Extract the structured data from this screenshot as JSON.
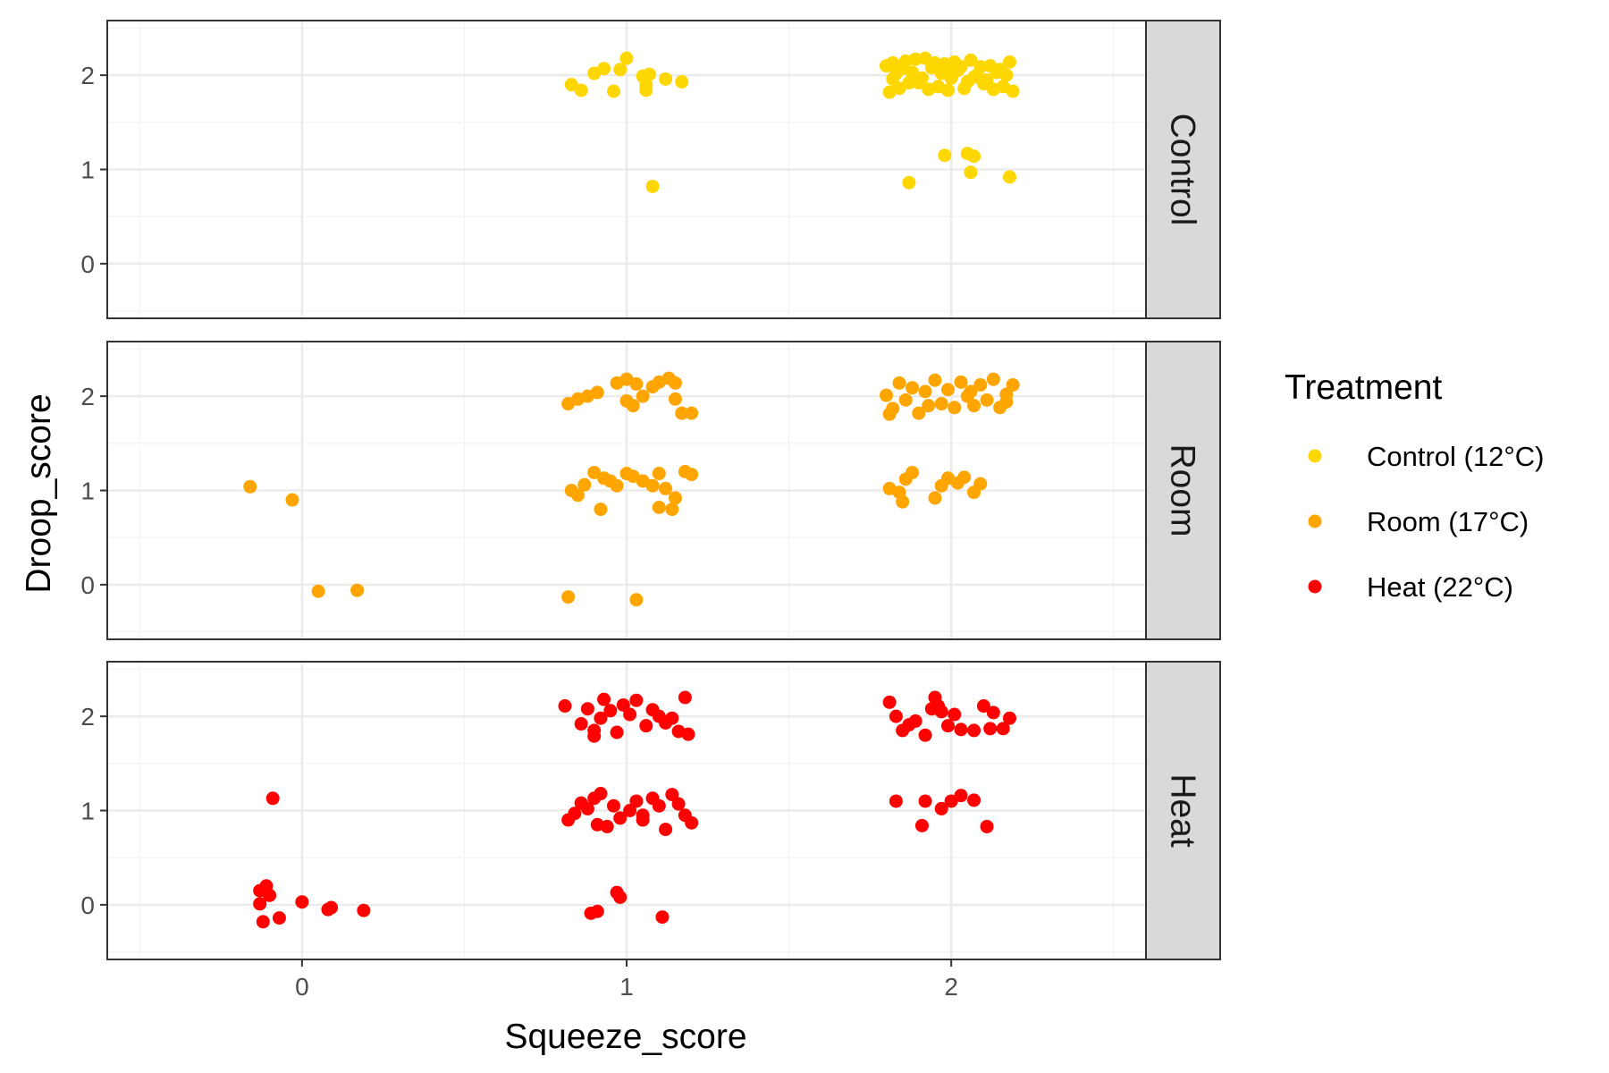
{
  "chart_data": {
    "type": "scatter",
    "title": "",
    "xlabel": "Squeeze_score",
    "ylabel": "Droop_score",
    "xlim": [
      -0.6,
      2.6
    ],
    "ylim": [
      -0.58,
      2.58
    ],
    "x_ticks": [
      "0",
      "1",
      "2"
    ],
    "y_ticks": [
      "0",
      "1",
      "2"
    ],
    "grid": true,
    "legend": {
      "title": "Treatment",
      "placement": "right",
      "entries": [
        "Control (12°C)",
        "Room (17°C)",
        "Heat (22°C)"
      ]
    },
    "facets": [
      {
        "label": "Control",
        "series": "Control (12°C)",
        "color": "#FFD700",
        "points": [
          [
            0.83,
            1.9
          ],
          [
            0.86,
            1.84
          ],
          [
            0.9,
            2.02
          ],
          [
            0.93,
            2.07
          ],
          [
            0.98,
            2.06
          ],
          [
            0.96,
            1.83
          ],
          [
            1.0,
            2.18
          ],
          [
            1.05,
            1.99
          ],
          [
            1.06,
            1.84
          ],
          [
            1.06,
            1.9
          ],
          [
            1.07,
            2.01
          ],
          [
            1.12,
            1.96
          ],
          [
            1.17,
            1.93
          ],
          [
            1.08,
            0.82
          ],
          [
            1.8,
            2.1
          ],
          [
            1.82,
            1.96
          ],
          [
            1.84,
            1.86
          ],
          [
            1.86,
            2.15
          ],
          [
            1.88,
            2.03
          ],
          [
            1.9,
            1.92
          ],
          [
            1.92,
            2.18
          ],
          [
            1.94,
            2.08
          ],
          [
            1.96,
            1.88
          ],
          [
            1.98,
            2.12
          ],
          [
            2.0,
            1.97
          ],
          [
            2.02,
            2.05
          ],
          [
            2.04,
            1.86
          ],
          [
            2.06,
            2.16
          ],
          [
            2.08,
            2.0
          ],
          [
            2.1,
            1.91
          ],
          [
            2.12,
            2.1
          ],
          [
            2.14,
            2.03
          ],
          [
            2.16,
            1.88
          ],
          [
            2.18,
            2.14
          ],
          [
            2.19,
            1.83
          ],
          [
            1.81,
            1.82
          ],
          [
            1.85,
            2.07
          ],
          [
            1.89,
            2.17
          ],
          [
            1.93,
            1.85
          ],
          [
            1.97,
            2.02
          ],
          [
            2.01,
            2.14
          ],
          [
            2.05,
            1.93
          ],
          [
            2.09,
            2.09
          ],
          [
            2.13,
            1.85
          ],
          [
            2.17,
            2.0
          ],
          [
            1.83,
            2.02
          ],
          [
            1.91,
            1.97
          ],
          [
            1.99,
            1.84
          ],
          [
            2.07,
            1.98
          ],
          [
            2.15,
            2.06
          ],
          [
            1.87,
            1.92
          ],
          [
            1.95,
            2.13
          ],
          [
            2.03,
            2.09
          ],
          [
            2.11,
            1.95
          ],
          [
            1.82,
            2.13
          ],
          [
            2.0,
            2.02
          ],
          [
            1.87,
            0.86
          ],
          [
            1.98,
            1.15
          ],
          [
            2.05,
            1.17
          ],
          [
            2.07,
            1.14
          ],
          [
            2.06,
            0.97
          ],
          [
            2.18,
            0.92
          ]
        ]
      },
      {
        "label": "Room",
        "series": "Room (17°C)",
        "color": "#FFA500",
        "points": [
          [
            -0.16,
            1.04
          ],
          [
            -0.03,
            0.9
          ],
          [
            0.05,
            -0.07
          ],
          [
            0.17,
            -0.06
          ],
          [
            0.82,
            1.92
          ],
          [
            0.85,
            1.97
          ],
          [
            0.88,
            2.0
          ],
          [
            0.91,
            2.04
          ],
          [
            0.97,
            2.14
          ],
          [
            1.0,
            2.18
          ],
          [
            1.03,
            2.13
          ],
          [
            1.0,
            1.95
          ],
          [
            1.02,
            1.9
          ],
          [
            1.05,
            2.0
          ],
          [
            1.08,
            2.1
          ],
          [
            1.1,
            2.15
          ],
          [
            1.13,
            2.19
          ],
          [
            1.15,
            2.14
          ],
          [
            1.15,
            1.97
          ],
          [
            1.17,
            1.82
          ],
          [
            1.2,
            1.82
          ],
          [
            0.83,
            1.0
          ],
          [
            0.85,
            0.95
          ],
          [
            0.87,
            1.06
          ],
          [
            0.9,
            1.19
          ],
          [
            0.93,
            1.13
          ],
          [
            0.95,
            1.1
          ],
          [
            0.97,
            1.05
          ],
          [
            1.0,
            1.18
          ],
          [
            1.02,
            1.15
          ],
          [
            1.05,
            1.1
          ],
          [
            1.08,
            1.05
          ],
          [
            1.1,
            1.18
          ],
          [
            1.12,
            1.02
          ],
          [
            1.15,
            0.92
          ],
          [
            1.18,
            1.2
          ],
          [
            1.2,
            1.17
          ],
          [
            0.92,
            0.8
          ],
          [
            1.1,
            0.82
          ],
          [
            1.14,
            0.8
          ],
          [
            0.82,
            -0.13
          ],
          [
            1.03,
            -0.16
          ],
          [
            1.8,
            2.01
          ],
          [
            1.82,
            1.87
          ],
          [
            1.84,
            2.14
          ],
          [
            1.86,
            1.96
          ],
          [
            1.88,
            2.09
          ],
          [
            1.9,
            1.82
          ],
          [
            1.92,
            2.05
          ],
          [
            1.95,
            2.17
          ],
          [
            1.97,
            1.92
          ],
          [
            1.99,
            2.07
          ],
          [
            2.01,
            1.88
          ],
          [
            2.03,
            2.15
          ],
          [
            2.05,
            2.0
          ],
          [
            2.07,
            1.9
          ],
          [
            2.09,
            2.12
          ],
          [
            2.11,
            1.96
          ],
          [
            2.13,
            2.18
          ],
          [
            2.15,
            1.88
          ],
          [
            2.17,
            2.02
          ],
          [
            2.19,
            2.12
          ],
          [
            1.81,
            1.81
          ],
          [
            1.93,
            1.9
          ],
          [
            2.06,
            2.05
          ],
          [
            2.17,
            1.94
          ],
          [
            1.81,
            1.02
          ],
          [
            1.84,
            0.98
          ],
          [
            1.86,
            1.12
          ],
          [
            1.88,
            1.19
          ],
          [
            1.85,
            0.88
          ],
          [
            1.95,
            0.92
          ],
          [
            1.97,
            1.05
          ],
          [
            1.99,
            1.13
          ],
          [
            2.02,
            1.08
          ],
          [
            2.04,
            1.14
          ],
          [
            2.07,
            0.98
          ],
          [
            2.09,
            1.07
          ]
        ]
      },
      {
        "label": "Heat",
        "series": "Heat (22°C)",
        "color": "#FF0000",
        "points": [
          [
            -0.09,
            1.13
          ],
          [
            -0.13,
            0.15
          ],
          [
            -0.11,
            0.2
          ],
          [
            -0.1,
            0.1
          ],
          [
            -0.13,
            0.01
          ],
          [
            -0.12,
            -0.18
          ],
          [
            -0.07,
            -0.14
          ],
          [
            0.0,
            0.03
          ],
          [
            0.08,
            -0.05
          ],
          [
            0.09,
            -0.03
          ],
          [
            0.19,
            -0.06
          ],
          [
            0.81,
            2.11
          ],
          [
            0.86,
            1.92
          ],
          [
            0.88,
            2.08
          ],
          [
            0.9,
            1.85
          ],
          [
            0.92,
            1.98
          ],
          [
            0.93,
            2.18
          ],
          [
            0.95,
            2.06
          ],
          [
            0.97,
            1.83
          ],
          [
            0.99,
            2.12
          ],
          [
            1.01,
            2.02
          ],
          [
            1.03,
            2.17
          ],
          [
            1.08,
            2.07
          ],
          [
            1.1,
            2.0
          ],
          [
            1.12,
            1.93
          ],
          [
            1.14,
            1.98
          ],
          [
            1.16,
            1.84
          ],
          [
            1.18,
            2.2
          ],
          [
            1.19,
            1.81
          ],
          [
            0.9,
            1.79
          ],
          [
            1.06,
            1.9
          ],
          [
            0.82,
            0.9
          ],
          [
            0.84,
            0.97
          ],
          [
            0.86,
            1.08
          ],
          [
            0.88,
            1.02
          ],
          [
            0.9,
            1.13
          ],
          [
            0.92,
            1.18
          ],
          [
            0.94,
            0.83
          ],
          [
            0.96,
            1.05
          ],
          [
            0.98,
            0.92
          ],
          [
            1.01,
            1.0
          ],
          [
            1.03,
            1.1
          ],
          [
            1.05,
            0.95
          ],
          [
            1.08,
            1.13
          ],
          [
            1.1,
            1.05
          ],
          [
            1.12,
            0.8
          ],
          [
            1.14,
            1.17
          ],
          [
            1.16,
            1.07
          ],
          [
            1.18,
            0.95
          ],
          [
            1.2,
            0.87
          ],
          [
            0.91,
            0.85
          ],
          [
            1.05,
            0.9
          ],
          [
            0.89,
            -0.09
          ],
          [
            0.91,
            -0.07
          ],
          [
            0.97,
            0.13
          ],
          [
            0.98,
            0.08
          ],
          [
            1.11,
            -0.13
          ],
          [
            1.81,
            2.15
          ],
          [
            1.83,
            2.0
          ],
          [
            1.85,
            1.85
          ],
          [
            1.87,
            1.91
          ],
          [
            1.89,
            1.95
          ],
          [
            1.92,
            1.8
          ],
          [
            1.94,
            2.08
          ],
          [
            1.95,
            2.2
          ],
          [
            1.97,
            2.05
          ],
          [
            1.99,
            1.9
          ],
          [
            2.01,
            2.02
          ],
          [
            2.03,
            1.86
          ],
          [
            2.07,
            1.85
          ],
          [
            2.1,
            2.11
          ],
          [
            2.13,
            2.04
          ],
          [
            2.16,
            1.87
          ],
          [
            2.18,
            1.98
          ],
          [
            1.96,
            2.11
          ],
          [
            2.12,
            1.87
          ],
          [
            1.83,
            1.1
          ],
          [
            1.92,
            1.1
          ],
          [
            1.91,
            0.84
          ],
          [
            1.97,
            1.02
          ],
          [
            2.0,
            1.1
          ],
          [
            2.03,
            1.16
          ],
          [
            2.07,
            1.11
          ],
          [
            2.11,
            0.83
          ]
        ]
      }
    ]
  }
}
